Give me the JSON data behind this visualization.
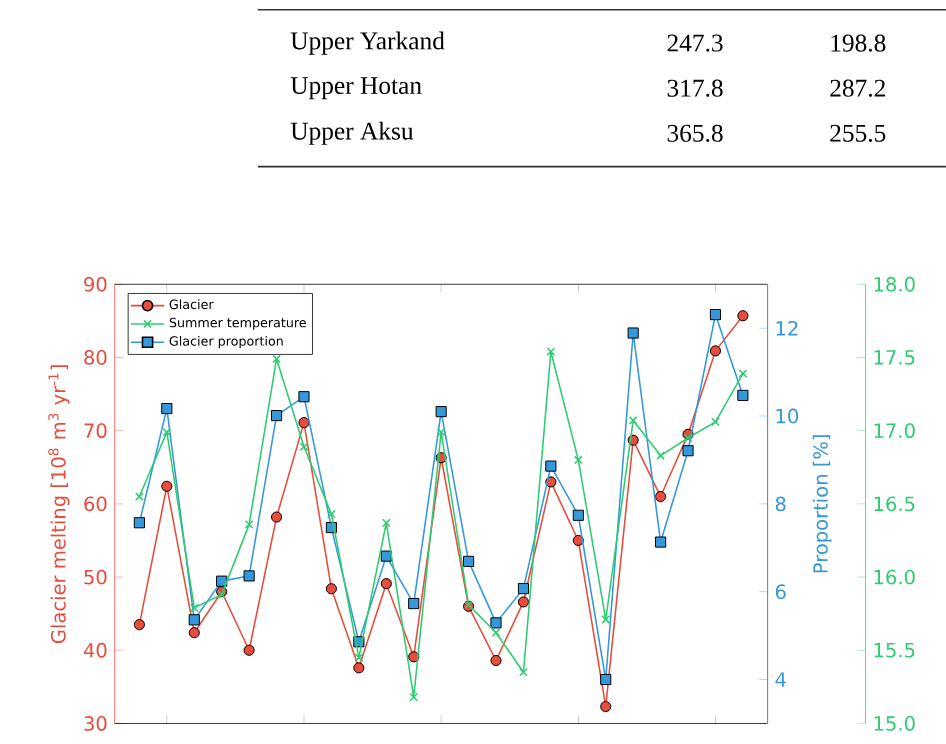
{
  "chart_data": {
    "type": "line",
    "annotations": [
      "Upper Yarkand",
      "247.3",
      "198.8",
      "Upper Hotan",
      "317.8",
      "287.2",
      "Upper Aksu",
      "365.8",
      "255.5"
    ],
    "ylabel": "Glacier melting [10$^{8}$ m$^{3}$ yr$^{-1}$]",
    "y2label": "Proportion [%]",
    "categories": [
      null,
      null,
      null,
      null,
      null,
      null,
      null,
      null,
      null,
      null,
      null,
      null,
      null,
      null,
      null,
      null,
      null,
      null,
      null,
      null,
      null,
      null,
      null
    ],
    "ylim": [
      30,
      90
    ],
    "yticks": [
      30,
      40,
      50,
      60,
      70,
      80,
      90
    ],
    "y2lim": [
      3,
      13
    ],
    "y2ticks": [
      4,
      6,
      8,
      10,
      12
    ],
    "y3lim": [
      15,
      18
    ],
    "y3ticks": [
      {
        "value": 15,
        "label": "15.0"
      },
      {
        "value": 15.5,
        "label": "15.5"
      },
      {
        "value": 16,
        "label": "16.0"
      },
      {
        "value": 16.5,
        "label": "16.5"
      },
      {
        "value": 17,
        "label": "17.0"
      },
      {
        "value": 17.5,
        "label": "17.5"
      },
      {
        "value": 18,
        "label": "18.0"
      }
    ],
    "tick_labels": "y",
    "legend": "top left",
    "line_style": "solid",
    "series": [
      {
        "name": "Glacier",
        "color": "#e74c3c",
        "axis": "y",
        "marker": "circle",
        "values": [
          43.5,
          62.4,
          42.4,
          48,
          40.0,
          58.2,
          71.1,
          48.4,
          37.6,
          49.1,
          39.1,
          66.3,
          46.0,
          38.6,
          46.6,
          63.0,
          55.0,
          32.3,
          68.7,
          61.0,
          69.5,
          80.9,
          85.7
        ]
      },
      {
        "name": "Summer temperature",
        "color": "#2ecc71",
        "axis": "y3",
        "marker": "cross",
        "values": [
          16.55,
          16.99,
          15.79,
          15.88,
          16.36,
          17.49,
          16.89,
          16.43,
          15.45,
          16.37,
          15.18,
          16.99,
          15.81,
          15.62,
          15.35,
          17.54,
          16.8,
          15.71,
          17.07,
          16.83,
          16.95,
          17.06,
          17.39
        ]
      },
      {
        "name": "Glacier proportion",
        "color": "#3498db",
        "axis": "y2",
        "marker": "square",
        "values": [
          7.57,
          10.17,
          5.36,
          6.24,
          6.36,
          10.01,
          10.44,
          7.46,
          4.86,
          6.81,
          5.73,
          10.1,
          6.69,
          5.29,
          6.07,
          8.86,
          7.74,
          4.0,
          11.89,
          7.13,
          9.21,
          12.31,
          10.47
        ]
      }
    ]
  }
}
